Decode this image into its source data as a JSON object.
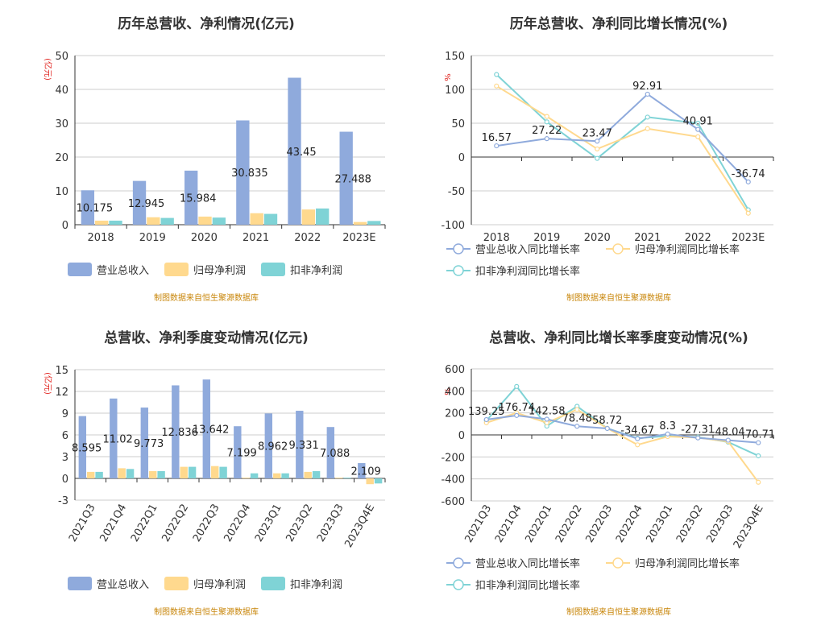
{
  "source_note": "制图数据来自恒生聚源数据库",
  "colors": {
    "revenue": "#8faadc",
    "net_profit": "#ffd98e",
    "deducted_profit": "#7fd3d6",
    "axis": "#333333",
    "grid": "#cccccc"
  },
  "chart_data": [
    {
      "type": "bar",
      "title": "历年总营收、净利情况(亿元)",
      "ylabel": "(亿元)",
      "ylim": [
        0,
        50
      ],
      "yticks": [
        0,
        10,
        20,
        30,
        40,
        50
      ],
      "categories": [
        "2018",
        "2019",
        "2020",
        "2021",
        "2022",
        "2023E"
      ],
      "series": [
        {
          "name": "营业总收入",
          "values": [
            10.175,
            12.945,
            15.984,
            30.835,
            43.45,
            27.488
          ],
          "labels": [
            "10.175",
            "12.945",
            "15.984",
            "30.835",
            "43.45",
            "27.488"
          ]
        },
        {
          "name": "归母净利润",
          "values": [
            1.2,
            2.2,
            2.4,
            3.4,
            4.5,
            0.8
          ]
        },
        {
          "name": "扣非净利润",
          "values": [
            1.2,
            2.0,
            2.1,
            3.2,
            4.8,
            1.1
          ]
        }
      ],
      "grid": true,
      "legend": "bottom"
    },
    {
      "type": "line",
      "title": "历年总营收、净利同比增长情况(%)",
      "ylabel": "%",
      "ylim": [
        -100,
        150
      ],
      "yticks": [
        -100,
        -50,
        0,
        50,
        100,
        150
      ],
      "categories": [
        "2018",
        "2019",
        "2020",
        "2021",
        "2022",
        "2023E"
      ],
      "series": [
        {
          "name": "营业总收入同比增长率",
          "values": [
            16.57,
            27.22,
            23.47,
            92.91,
            40.91,
            -36.74
          ],
          "labels": [
            "16.57",
            "27.22",
            "23.47",
            "92.91",
            "40.91",
            "-36.74"
          ]
        },
        {
          "name": "归母净利润同比增长率",
          "values": [
            105,
            60,
            12,
            42,
            30,
            -83
          ]
        },
        {
          "name": "扣非净利润同比增长率",
          "values": [
            122,
            52,
            -2,
            59,
            50,
            -78
          ]
        }
      ],
      "grid": true,
      "legend": "bottom"
    },
    {
      "type": "bar",
      "title": "总营收、净利季度变动情况(亿元)",
      "ylabel": "(亿元)",
      "ylim": [
        -3,
        15
      ],
      "yticks": [
        -3,
        0,
        3,
        6,
        9,
        12,
        15
      ],
      "categories": [
        "2021Q3",
        "2021Q4",
        "2022Q1",
        "2022Q2",
        "2022Q3",
        "2022Q4",
        "2023Q1",
        "2023Q2",
        "2023Q3",
        "2023Q4E"
      ],
      "series": [
        {
          "name": "营业总收入",
          "values": [
            8.595,
            11.02,
            9.773,
            12.836,
            13.642,
            7.199,
            8.962,
            9.331,
            7.088,
            2.109
          ],
          "labels": [
            "8.595",
            "11.02",
            "9.773",
            "12.836",
            "13.642",
            "7.199",
            "8.962",
            "9.331",
            "7.088",
            "2.109"
          ]
        },
        {
          "name": "归母净利润",
          "values": [
            0.9,
            1.4,
            1.0,
            1.6,
            1.7,
            0.1,
            0.7,
            0.9,
            0.1,
            -0.8
          ]
        },
        {
          "name": "扣非净利润",
          "values": [
            0.9,
            1.3,
            1.0,
            1.6,
            1.6,
            0.7,
            0.7,
            1.0,
            0.1,
            -0.7
          ]
        }
      ],
      "grid": true,
      "legend": "bottom"
    },
    {
      "type": "line",
      "title": "总营收、净利同比增长率季度变动情况(%)",
      "ylabel": "%",
      "ylim": [
        -600,
        600
      ],
      "yticks": [
        -600,
        -400,
        -200,
        0,
        200,
        400,
        600
      ],
      "categories": [
        "2021Q3",
        "2021Q4",
        "2022Q1",
        "2022Q2",
        "2022Q3",
        "2022Q4",
        "2023Q1",
        "2023Q2",
        "2023Q3",
        "2023Q4E"
      ],
      "series": [
        {
          "name": "营业总收入同比增长率",
          "values": [
            139.25,
            176.74,
            142.58,
            78.48,
            58.72,
            -34.67,
            8.3,
            -27.31,
            -48.04,
            -70.71
          ],
          "labels": [
            "139.25",
            "176.74",
            "142.58",
            "78.48",
            "58.72",
            "-34.67",
            "8.3",
            "-27.31",
            "-48.04",
            "-70.71"
          ]
        },
        {
          "name": "归母净利润同比增长率",
          "values": [
            110,
            200,
            110,
            230,
            60,
            -90,
            -15,
            -25,
            -60,
            -430
          ]
        },
        {
          "name": "扣非净利润同比增长率",
          "values": [
            130,
            440,
            80,
            260,
            60,
            -30,
            -10,
            -20,
            -65,
            -190
          ]
        }
      ],
      "grid": true,
      "legend": "bottom"
    }
  ]
}
